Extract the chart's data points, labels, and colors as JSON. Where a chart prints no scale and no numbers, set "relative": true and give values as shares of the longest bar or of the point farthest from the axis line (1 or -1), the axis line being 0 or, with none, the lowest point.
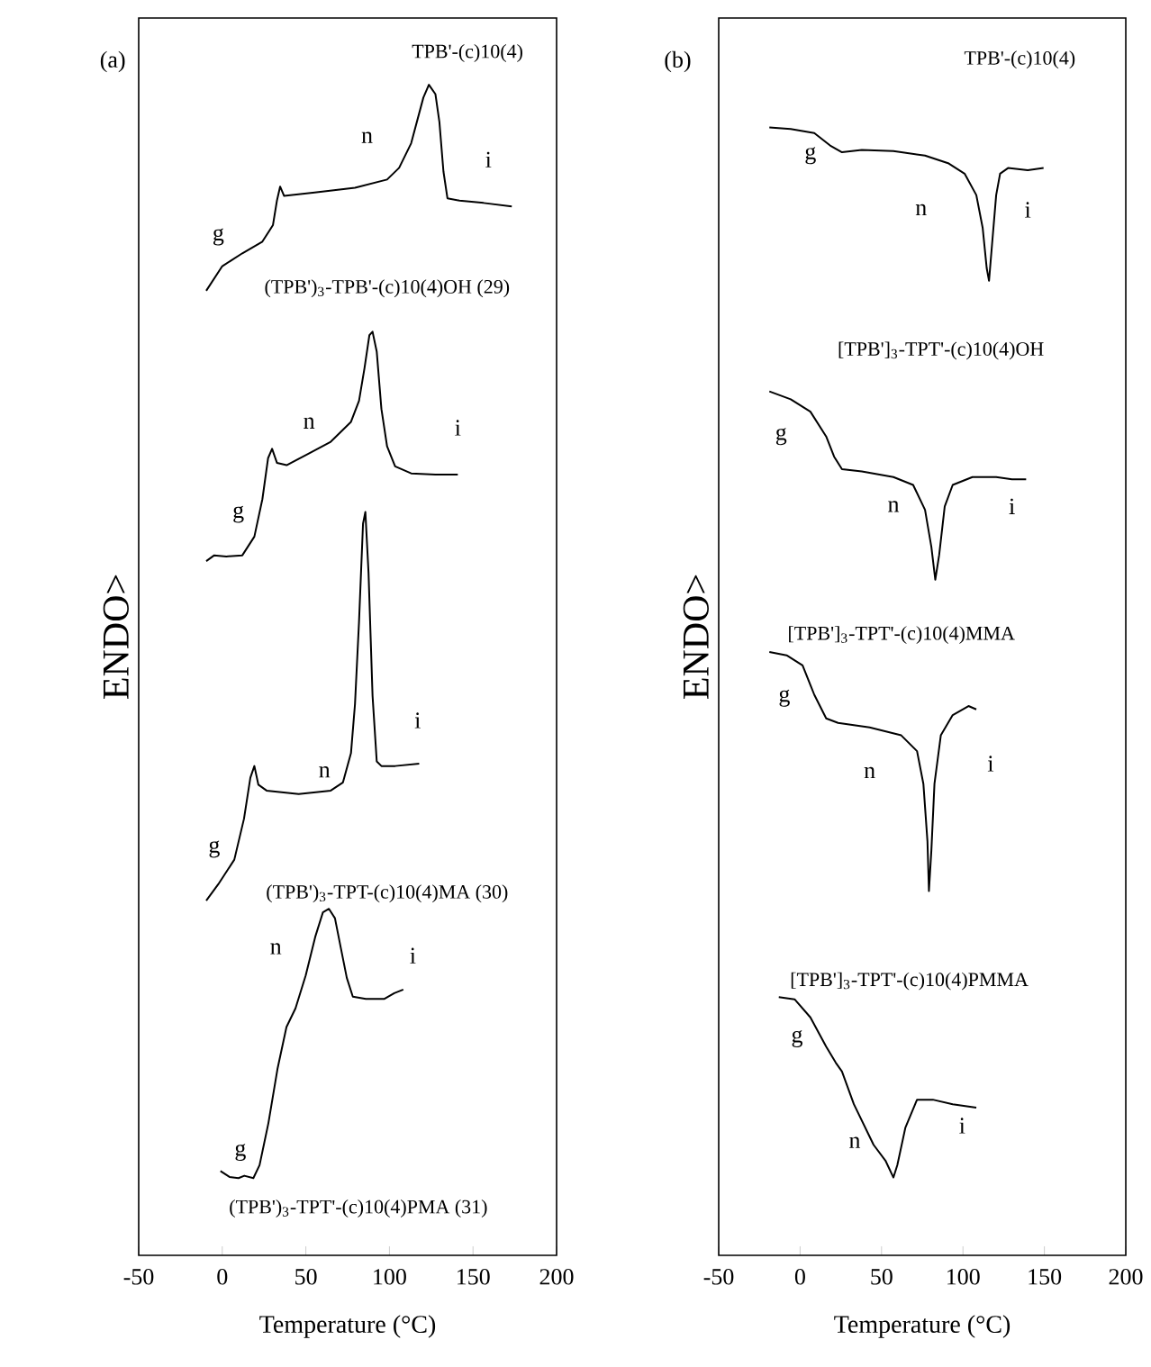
{
  "chart_data": [
    {
      "type": "line",
      "relative": true,
      "xlabel": "Temperature (°C)",
      "ylabel": "ENDO>",
      "xlim": [
        -50,
        200
      ],
      "xticks": [
        -50,
        0,
        50,
        100,
        150,
        200
      ],
      "marker": "none",
      "line_style": "solid",
      "series": [
        {
          "color": "#000000",
          "x": [
            -9.6,
            0,
            12.0,
            24.0,
            30.3,
            32.7,
            34.6,
            37.0,
            55.3,
            79.4,
            98.6,
            105.8,
            113.0,
            120.3,
            123.6,
            127.5,
            129.9,
            132.3,
            134.7,
            141.9,
            156.3,
            173.2
          ],
          "values": [
            0.824,
            0.845,
            0.856,
            0.866,
            0.88,
            0.901,
            0.913,
            0.905,
            0.908,
            0.912,
            0.919,
            0.929,
            0.95,
            0.989,
            1.0,
            0.992,
            0.968,
            0.926,
            0.903,
            0.901,
            0.899,
            0.896
          ]
        },
        {
          "color": "#000000",
          "x": [
            -9.6,
            -4.8,
            2.4,
            12.0,
            19.2,
            24.0,
            27.4,
            29.8,
            32.7,
            38.5,
            50.5,
            64.9,
            77.0,
            81.8,
            85.1,
            88.0,
            89.9,
            92.4,
            95.2,
            98.6,
            103.4,
            113.0,
            127.5,
            140.9
          ],
          "values": [
            0.593,
            0.598,
            0.597,
            0.598,
            0.614,
            0.646,
            0.681,
            0.689,
            0.677,
            0.675,
            0.684,
            0.695,
            0.712,
            0.73,
            0.758,
            0.786,
            0.789,
            0.772,
            0.723,
            0.691,
            0.674,
            0.668,
            0.667,
            0.667
          ]
        },
        {
          "color": "#000000",
          "x": [
            -9.6,
            -2.4,
            7.2,
            13.0,
            16.8,
            19.2,
            21.6,
            26.5,
            45.7,
            64.9,
            72.2,
            77.0,
            79.4,
            81.8,
            84.2,
            85.6,
            87.5,
            89.9,
            92.4,
            95.2,
            103.4,
            117.8
          ],
          "values": [
            0.303,
            0.317,
            0.338,
            0.373,
            0.408,
            0.418,
            0.402,
            0.397,
            0.394,
            0.397,
            0.404,
            0.429,
            0.471,
            0.541,
            0.625,
            0.635,
            0.583,
            0.478,
            0.422,
            0.418,
            0.418,
            0.42
          ]
        },
        {
          "color": "#000000",
          "x": [
            -1.1,
            4.3,
            9.7,
            13.2,
            18.6,
            22.3,
            27.6,
            33.0,
            38.4,
            43.8,
            49.9,
            55.6,
            60.2,
            63.8,
            67.4,
            71.0,
            74.5,
            78.1,
            85.9,
            96.8,
            102.9,
            108.3
          ],
          "values": [
            0.072,
            0.067,
            0.066,
            0.068,
            0.066,
            0.077,
            0.113,
            0.159,
            0.195,
            0.211,
            0.239,
            0.272,
            0.293,
            0.296,
            0.288,
            0.262,
            0.237,
            0.221,
            0.219,
            0.219,
            0.224,
            0.227
          ]
        }
      ],
      "annotations": [
        "(a)",
        "TPB'-(c)10(4)",
        "g",
        "n",
        "i",
        "(TPB')$_{3}$-TPB'-(c)10(4)OH (29)",
        "g",
        "n",
        "i",
        "(TPB')$_{3}$-TPT-(c)10(4)MA (30)",
        "g",
        "n",
        "i",
        "n",
        "i",
        "g",
        "(TPB')$_{3}$-TPT'-(c)10(4)PMA (31)"
      ]
    },
    {
      "type": "line",
      "relative": true,
      "xlabel": "Temperature (°C)",
      "ylabel": "ENDO>",
      "xlim": [
        -50,
        200
      ],
      "xticks": [
        -50,
        0,
        50,
        100,
        150,
        200
      ],
      "marker": "none",
      "line_style": "solid",
      "series": [
        {
          "color": "#000000",
          "x": [
            -18.9,
            -5.8,
            8.7,
            18.4,
            25.7,
            37.9,
            57.3,
            76.7,
            91.3,
            101.0,
            108.2,
            112.1,
            114.6,
            116.0,
            117.9,
            120.4,
            122.8,
            127.7,
            139.8,
            149.5
          ],
          "values": [
            1.0,
            0.9985,
            0.995,
            0.984,
            0.978,
            0.98,
            0.979,
            0.975,
            0.968,
            0.959,
            0.94,
            0.911,
            0.875,
            0.864,
            0.897,
            0.94,
            0.959,
            0.964,
            0.962,
            0.964
          ]
        },
        {
          "color": "#000000",
          "x": [
            -18.9,
            -5.8,
            6.3,
            16.0,
            20.9,
            25.7,
            37.9,
            57.3,
            69.4,
            76.7,
            80.6,
            83.0,
            85.4,
            88.8,
            93.7,
            105.8,
            120.4,
            130.1,
            138.8
          ],
          "values": [
            0.766,
            0.759,
            0.748,
            0.726,
            0.708,
            0.697,
            0.695,
            0.69,
            0.683,
            0.661,
            0.628,
            0.599,
            0.621,
            0.664,
            0.683,
            0.69,
            0.69,
            0.688,
            0.688
          ]
        },
        {
          "color": "#000000",
          "x": [
            -18.9,
            -8.3,
            1.5,
            8.7,
            16.0,
            23.3,
            42.7,
            62.1,
            71.8,
            75.7,
            78.2,
            79.1,
            80.6,
            82.5,
            86.4,
            93.7,
            103.4,
            108.2
          ],
          "values": [
            0.535,
            0.532,
            0.523,
            0.497,
            0.476,
            0.472,
            0.468,
            0.461,
            0.447,
            0.418,
            0.367,
            0.323,
            0.359,
            0.418,
            0.461,
            0.479,
            0.487,
            0.484
          ]
        },
        {
          "color": "#000000",
          "x": [
            -13.1,
            -3.4,
            6.3,
            16.0,
            21.8,
            25.7,
            33.0,
            45.1,
            52.4,
            57.3,
            59.7,
            64.6,
            71.8,
            81.5,
            93.7,
            108.2
          ],
          "values": [
            0.229,
            0.227,
            0.211,
            0.185,
            0.171,
            0.163,
            0.134,
            0.098,
            0.084,
            0.069,
            0.08,
            0.113,
            0.138,
            0.138,
            0.134,
            0.131
          ]
        }
      ],
      "annotations": [
        "(b)",
        "TPB'-(c)10(4)",
        "g",
        "n",
        "i",
        "[TPB']$_{3}$-TPT'-(c)10(4)OH",
        "g",
        "n",
        "i",
        "[TPB']$_{3}$-TPT'-(c)10(4)MMA",
        "g",
        "n",
        "i",
        "[TPB']$_{3}$-TPT'-(c)10(4)PMMA",
        "g",
        "n",
        "i"
      ]
    }
  ]
}
